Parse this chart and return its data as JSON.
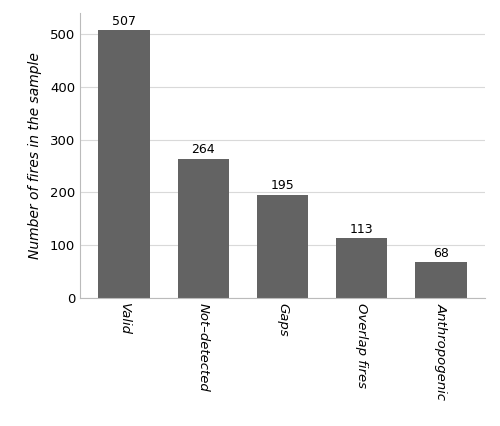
{
  "categories": [
    "Valid",
    "Not–detected",
    "Gaps",
    "Overlap fires",
    "Anthropogenic"
  ],
  "values": [
    507,
    264,
    195,
    113,
    68
  ],
  "bar_color": "#636363",
  "ylabel": "Number of fires in the sample",
  "ylim": [
    0,
    540
  ],
  "yticks": [
    0,
    100,
    200,
    300,
    400,
    500
  ],
  "background_color": "#ffffff",
  "grid_color": "#d9d9d9",
  "label_fontsize": 10,
  "tick_label_fontsize": 9.5,
  "bar_label_fontsize": 9
}
